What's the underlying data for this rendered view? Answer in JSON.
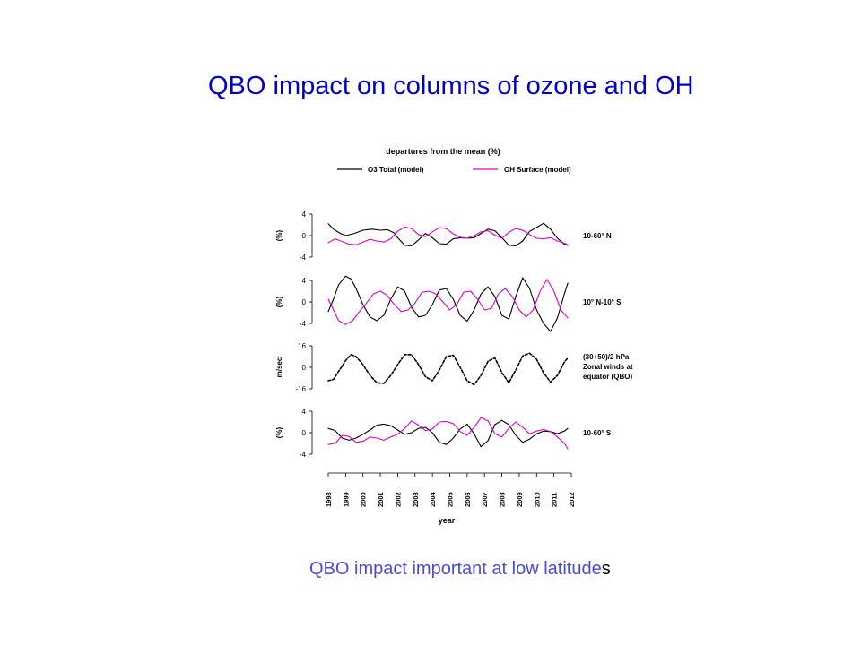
{
  "slide": {
    "title": "QBO impact on columns of ozone and OH",
    "caption_main": "QBO impact important at low latitude",
    "caption_tail": "s",
    "caption_color": "#4a4adf",
    "title_color": "#0000cc"
  },
  "chart_data": {
    "type": "line",
    "title": "departures from the mean (%)",
    "xlabel": "year",
    "x_ticks": [
      "1998",
      "1999",
      "2000",
      "2001",
      "2002",
      "2003",
      "2004",
      "2005",
      "2006",
      "2007",
      "2008",
      "2009",
      "2010",
      "2011",
      "2012"
    ],
    "xlim": [
      1998,
      2012
    ],
    "legend": {
      "placement": "top",
      "entries": [
        {
          "name": "O3 Total (model)",
          "color": "#000000"
        },
        {
          "name": "OH Surface (model)",
          "color": "#e000c8"
        }
      ]
    },
    "panels": [
      {
        "label": "10-60° N",
        "ylabel": "(%)",
        "yticks": [
          "4",
          "0",
          "-4"
        ],
        "ylim": [
          -4,
          4
        ],
        "series": [
          {
            "name": "O3 Total (model)",
            "color": "#000000",
            "style": "solid",
            "x": [
              1998.0,
              1998.3,
              1998.7,
              1999.0,
              1999.5,
              2000.0,
              2000.5,
              2001.0,
              2001.4,
              2001.8,
              2002.0,
              2002.4,
              2002.8,
              2003.2,
              2003.6,
              2004.0,
              2004.4,
              2004.8,
              2005.2,
              2005.6,
              2006.0,
              2006.4,
              2006.8,
              2007.2,
              2007.6,
              2008.0,
              2008.4,
              2008.8,
              2009.2,
              2009.6,
              2010.0,
              2010.4,
              2010.8,
              2011.2,
              2011.6,
              2011.8
            ],
            "y": [
              2.2,
              1.2,
              0.4,
              0.0,
              0.4,
              1.0,
              1.2,
              1.0,
              1.1,
              0.5,
              -0.4,
              -1.8,
              -1.9,
              -0.8,
              0.4,
              -0.4,
              -1.5,
              -1.6,
              -0.6,
              -0.4,
              -0.5,
              -0.4,
              0.4,
              1.2,
              0.9,
              -0.4,
              -1.8,
              -1.9,
              -1.0,
              0.8,
              1.5,
              2.3,
              1.2,
              -0.5,
              -1.6,
              -1.8
            ]
          },
          {
            "name": "OH Surface (model)",
            "color": "#e000c8",
            "style": "solid",
            "x": [
              1998.0,
              1998.4,
              1998.8,
              1999.2,
              1999.6,
              2000.0,
              2000.4,
              2000.8,
              2001.2,
              2001.6,
              2002.0,
              2002.4,
              2002.8,
              2003.2,
              2003.6,
              2004.0,
              2004.4,
              2004.8,
              2005.2,
              2005.6,
              2006.0,
              2006.4,
              2006.8,
              2007.2,
              2007.6,
              2008.0,
              2008.4,
              2008.8,
              2009.2,
              2009.6,
              2010.0,
              2010.4,
              2010.8,
              2011.2,
              2011.6,
              2011.8
            ],
            "y": [
              -1.3,
              -0.6,
              -1.1,
              -1.6,
              -1.7,
              -1.2,
              -0.7,
              -1.0,
              -1.2,
              -0.6,
              0.8,
              1.6,
              1.3,
              0.2,
              -0.2,
              0.7,
              1.5,
              1.3,
              0.3,
              -0.3,
              -0.5,
              0.0,
              0.7,
              0.9,
              0.1,
              -0.5,
              0.6,
              1.3,
              1.0,
              0.2,
              -0.5,
              -0.6,
              -0.4,
              -1.0,
              -1.4,
              -1.7
            ]
          }
        ]
      },
      {
        "label": "10° N-10° S",
        "ylabel": "(%)",
        "yticks": [
          "4",
          "0",
          "-4"
        ],
        "ylim": [
          -4,
          4
        ],
        "series": [
          {
            "name": "O3 Total (model)",
            "color": "#000000",
            "style": "solid",
            "x": [
              1998.0,
              1998.3,
              1998.6,
              1999.0,
              1999.3,
              1999.6,
              2000.0,
              2000.4,
              2000.8,
              2001.2,
              2001.6,
              2002.0,
              2002.4,
              2002.8,
              2003.2,
              2003.6,
              2004.0,
              2004.4,
              2004.8,
              2005.2,
              2005.6,
              2006.0,
              2006.4,
              2006.8,
              2007.2,
              2007.6,
              2008.0,
              2008.4,
              2008.8,
              2009.2,
              2009.6,
              2010.0,
              2010.4,
              2010.8,
              2011.2,
              2011.6,
              2011.8
            ],
            "y": [
              -1.8,
              0.5,
              3.2,
              4.8,
              4.3,
              2.5,
              -0.5,
              -2.8,
              -3.5,
              -2.5,
              0.5,
              2.8,
              2.0,
              -1.0,
              -2.8,
              -2.5,
              -0.5,
              2.2,
              2.5,
              0.5,
              -2.5,
              -3.6,
              -1.5,
              1.5,
              2.8,
              1.0,
              -2.5,
              -3.2,
              1.0,
              4.5,
              2.5,
              -1.5,
              -4.0,
              -5.5,
              -3.0,
              1.5,
              3.5
            ]
          },
          {
            "name": "OH Surface (model)",
            "color": "#e000c8",
            "style": "solid",
            "x": [
              1998.0,
              1998.3,
              1998.6,
              1999.0,
              1999.4,
              1999.8,
              2000.2,
              2000.6,
              2001.0,
              2001.4,
              2001.8,
              2002.2,
              2002.6,
              2003.0,
              2003.4,
              2003.8,
              2004.2,
              2004.6,
              2005.0,
              2005.4,
              2005.8,
              2006.2,
              2006.6,
              2007.0,
              2007.4,
              2007.8,
              2008.2,
              2008.6,
              2009.0,
              2009.4,
              2009.8,
              2010.2,
              2010.6,
              2011.0,
              2011.4,
              2011.8
            ],
            "y": [
              0.5,
              -1.5,
              -3.5,
              -4.2,
              -3.5,
              -1.8,
              -0.2,
              1.5,
              2.0,
              1.2,
              -0.5,
              -1.8,
              -1.5,
              -0.2,
              1.8,
              2.0,
              1.5,
              0.0,
              -1.5,
              -0.5,
              1.8,
              2.0,
              0.5,
              -1.5,
              -1.2,
              1.5,
              2.5,
              1.0,
              -1.5,
              -2.8,
              -1.5,
              2.0,
              4.2,
              2.0,
              -1.5,
              -3.0
            ]
          }
        ]
      },
      {
        "label": "(30+50)/2 hPa",
        "label_lines": [
          "(30+50)/2 hPa",
          "Zonal winds at",
          "equator (QBO)"
        ],
        "ylabel": "m/sec",
        "yticks": [
          "16",
          "0",
          "-16"
        ],
        "ylim": [
          -16,
          16
        ],
        "series": [
          {
            "name": "Zonal winds",
            "color": "#000000",
            "style": "dashed",
            "x": [
              1998.0,
              1998.3,
              1998.6,
              1999.0,
              1999.3,
              1999.6,
              2000.0,
              2000.4,
              2000.8,
              2001.2,
              2001.6,
              2002.0,
              2002.4,
              2002.8,
              2003.2,
              2003.6,
              2004.0,
              2004.4,
              2004.8,
              2005.2,
              2005.6,
              2006.0,
              2006.4,
              2006.8,
              2007.2,
              2007.6,
              2008.0,
              2008.4,
              2008.8,
              2009.2,
              2009.6,
              2010.0,
              2010.4,
              2010.8,
              2011.2,
              2011.6,
              2011.8
            ],
            "y": [
              -10.0,
              -9.0,
              -3.0,
              5.0,
              9.5,
              8.0,
              2.0,
              -6.0,
              -11.5,
              -12.0,
              -6.0,
              2.0,
              9.5,
              9.5,
              2.0,
              -7.0,
              -10.0,
              -2.0,
              8.0,
              9.0,
              0.0,
              -10.0,
              -13.0,
              -6.0,
              4.5,
              7.0,
              -4.0,
              -11.5,
              -2.0,
              8.5,
              10.5,
              6.0,
              -4.0,
              -11.0,
              -6.0,
              4.0,
              7.0
            ]
          }
        ]
      },
      {
        "label": "10-60° S",
        "ylabel": "(%)",
        "yticks": [
          "4",
          "0",
          "-4"
        ],
        "ylim": [
          -4,
          4
        ],
        "series": [
          {
            "name": "O3 Total (model)",
            "color": "#000000",
            "style": "solid",
            "x": [
              1998.0,
              1998.4,
              1998.8,
              1999.2,
              1999.6,
              2000.0,
              2000.4,
              2000.8,
              2001.2,
              2001.6,
              2002.0,
              2002.4,
              2002.8,
              2003.2,
              2003.6,
              2004.0,
              2004.4,
              2004.8,
              2005.2,
              2005.6,
              2006.0,
              2006.4,
              2006.8,
              2007.2,
              2007.6,
              2008.0,
              2008.4,
              2008.8,
              2009.2,
              2009.6,
              2010.0,
              2010.4,
              2010.8,
              2011.2,
              2011.6,
              2011.8
            ],
            "y": [
              0.8,
              0.4,
              -1.0,
              -1.4,
              -1.0,
              -0.3,
              0.5,
              1.4,
              1.6,
              1.3,
              0.5,
              -0.3,
              0.0,
              0.8,
              1.0,
              0.0,
              -1.8,
              -2.2,
              -1.0,
              0.7,
              1.6,
              -0.2,
              -2.6,
              -1.5,
              1.5,
              2.3,
              1.5,
              -0.5,
              -1.8,
              -1.2,
              -0.2,
              0.3,
              0.2,
              -0.2,
              0.3,
              0.8
            ]
          },
          {
            "name": "OH Surface (model)",
            "color": "#e000c8",
            "style": "solid",
            "x": [
              1998.0,
              1998.4,
              1998.8,
              1999.2,
              1999.6,
              2000.0,
              2000.4,
              2000.8,
              2001.2,
              2001.6,
              2002.0,
              2002.4,
              2002.8,
              2003.2,
              2003.6,
              2004.0,
              2004.4,
              2004.8,
              2005.2,
              2005.6,
              2006.0,
              2006.4,
              2006.8,
              2007.2,
              2007.6,
              2008.0,
              2008.4,
              2008.8,
              2009.2,
              2009.6,
              2010.0,
              2010.4,
              2010.8,
              2011.2,
              2011.6,
              2011.8
            ],
            "y": [
              -2.2,
              -2.0,
              -0.5,
              -0.7,
              -1.8,
              -1.6,
              -0.8,
              -1.0,
              -1.4,
              -0.8,
              -0.3,
              0.8,
              2.2,
              1.4,
              0.4,
              0.7,
              2.0,
              2.1,
              1.7,
              0.2,
              -0.5,
              1.0,
              2.8,
              2.2,
              -0.2,
              -0.8,
              0.8,
              2.0,
              1.0,
              -0.2,
              0.3,
              0.6,
              0.2,
              -0.8,
              -2.0,
              -3.0
            ]
          }
        ]
      }
    ]
  }
}
